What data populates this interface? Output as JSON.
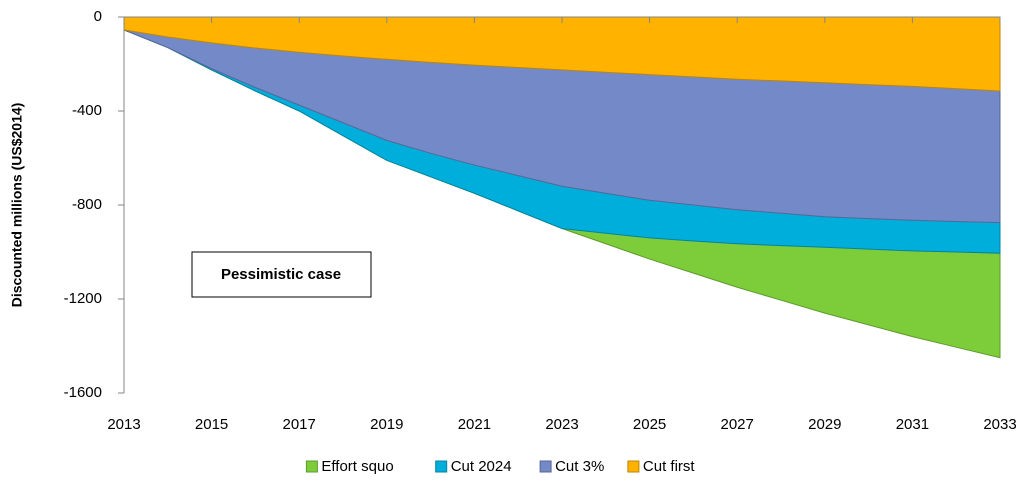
{
  "chart_data": {
    "type": "area",
    "y_label": "Discounted millions (US$2014)",
    "annotation": "Pessimistic case",
    "x": [
      2013,
      2014,
      2015,
      2016,
      2017,
      2018,
      2019,
      2020,
      2021,
      2022,
      2023,
      2024,
      2025,
      2026,
      2027,
      2028,
      2029,
      2030,
      2031,
      2032,
      2033
    ],
    "xlim": [
      2013,
      2033
    ],
    "xticks": [
      2013,
      2015,
      2017,
      2019,
      2021,
      2023,
      2025,
      2027,
      2029,
      2031,
      2033
    ],
    "ylim": [
      -1600,
      0
    ],
    "yticks": [
      0,
      -400,
      -800,
      -1200,
      -1600
    ],
    "legend": "bottom",
    "series": [
      {
        "name": "Effort squo",
        "color": "#7dcd3a",
        "values": [
          -55,
          -130,
          -225,
          -315,
          -400,
          -505,
          -610,
          -680,
          -750,
          -825,
          -900,
          -965,
          -1030,
          -1090,
          -1150,
          -1205,
          -1260,
          -1310,
          -1360,
          -1405,
          -1450
        ]
      },
      {
        "name": "Cut 2024",
        "color": "#00aedb",
        "values": [
          -55,
          -130,
          -225,
          -315,
          -400,
          -505,
          -610,
          -680,
          -750,
          -825,
          -900,
          -920,
          -940,
          -953,
          -965,
          -973,
          -980,
          -988,
          -995,
          -1000,
          -1005
        ]
      },
      {
        "name": "Cut 3%",
        "color": "#7389c8",
        "values": [
          -55,
          -130,
          -220,
          -300,
          -375,
          -450,
          -525,
          -580,
          -630,
          -675,
          -720,
          -750,
          -780,
          -800,
          -820,
          -835,
          -850,
          -858,
          -865,
          -870,
          -875
        ]
      },
      {
        "name": "Cut first",
        "color": "#ffb300",
        "values": [
          -55,
          -85,
          -110,
          -132,
          -150,
          -166,
          -180,
          -193,
          -205,
          -215,
          -225,
          -235,
          -245,
          -255,
          -265,
          -272,
          -280,
          -288,
          -295,
          -305,
          -315
        ]
      }
    ]
  }
}
